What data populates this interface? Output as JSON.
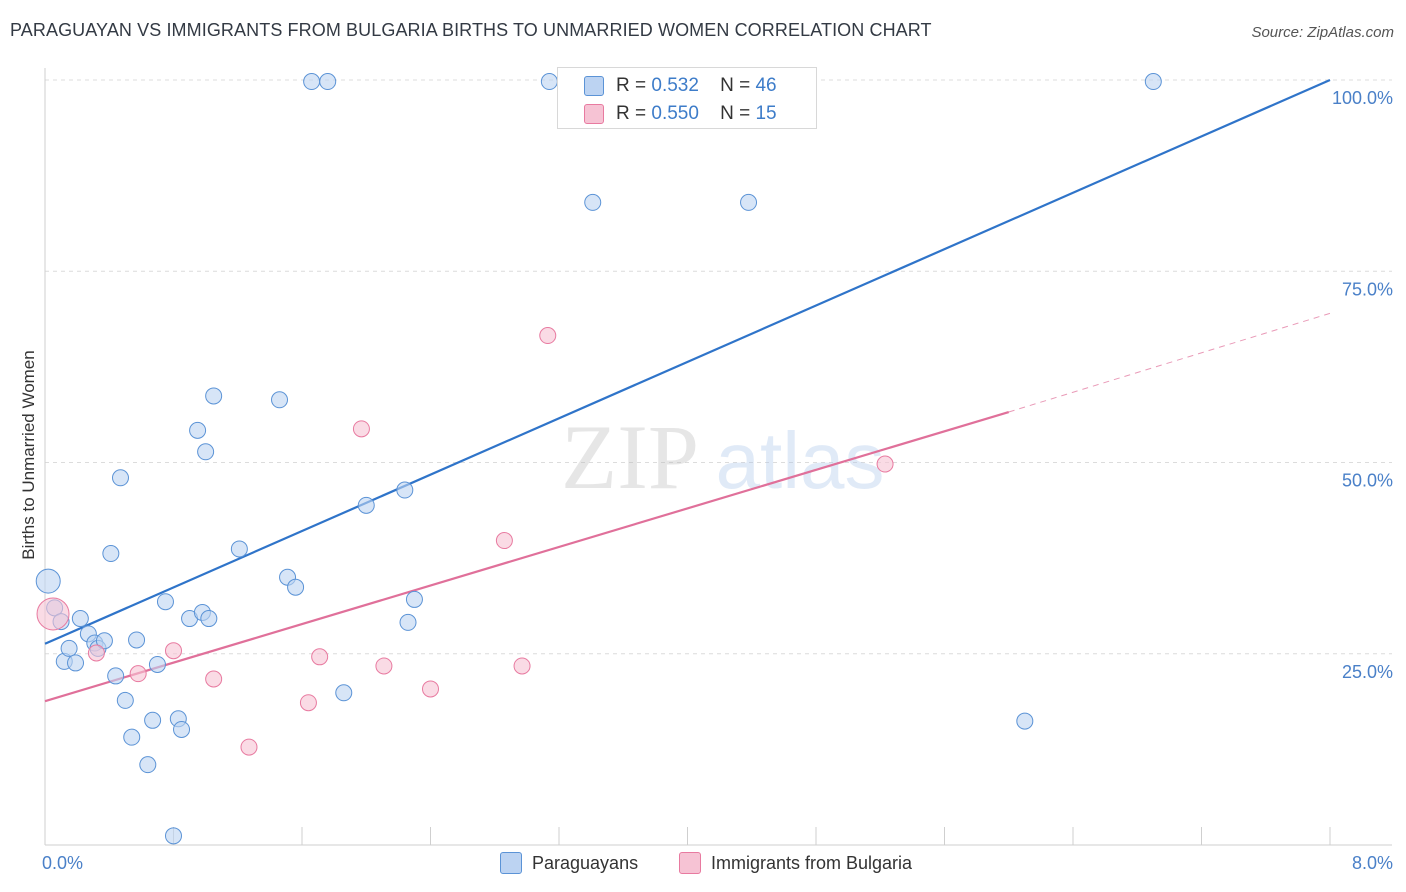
{
  "title": "PARAGUAYAN VS IMMIGRANTS FROM BULGARIA BIRTHS TO UNMARRIED WOMEN CORRELATION CHART",
  "source": "Source: ZipAtlas.com",
  "watermark": {
    "zip": "ZIP",
    "atlas": "atlas"
  },
  "colors": {
    "blue": "#5b93d6",
    "blue_fill": "#bcd3f2",
    "pink": "#e87aa0",
    "pink_fill": "#f6c3d4",
    "blue_line": "#2f74c9",
    "pink_line": "#e0709a",
    "axis_text": "#4a80c8"
  },
  "legend_corr": [
    {
      "series": "Paraguayans",
      "r_label": "R =",
      "r": "0.532",
      "n_label": "N =",
      "n": "46"
    },
    {
      "series": "Immigrants from Bulgaria",
      "r_label": "R =",
      "r": "0.550",
      "n_label": "N =",
      "n": "15"
    }
  ],
  "legend_bottom": [
    "Paraguayans",
    "Immigrants from Bulgaria"
  ],
  "chart_data": {
    "type": "scatter",
    "title": "PARAGUAYAN VS IMMIGRANTS FROM BULGARIA BIRTHS TO UNMARRIED WOMEN CORRELATION CHART",
    "xlabel": "",
    "ylabel": "Births to Unmarried Women",
    "xlim": [
      0,
      8
    ],
    "ylim": [
      0,
      100
    ],
    "x_tick_labels": [
      "0.0%",
      "8.0%"
    ],
    "y_tick_labels": [
      "25.0%",
      "50.0%",
      "75.0%",
      "100.0%"
    ],
    "y_ticks": [
      25,
      50,
      75,
      100
    ],
    "series": [
      {
        "name": "Paraguayans",
        "points": [
          [
            0.02,
            34.5
          ],
          [
            0.06,
            31.0
          ],
          [
            0.1,
            29.2
          ],
          [
            0.12,
            24.0
          ],
          [
            0.15,
            25.7
          ],
          [
            0.19,
            23.8
          ],
          [
            0.22,
            29.6
          ],
          [
            0.27,
            27.6
          ],
          [
            0.31,
            26.4
          ],
          [
            0.33,
            25.7
          ],
          [
            0.37,
            26.7
          ],
          [
            0.41,
            38.1
          ],
          [
            0.44,
            22.1
          ],
          [
            0.47,
            48.0
          ],
          [
            0.5,
            18.9
          ],
          [
            0.54,
            14.1
          ],
          [
            0.57,
            26.8
          ],
          [
            0.64,
            10.5
          ],
          [
            0.67,
            16.3
          ],
          [
            0.7,
            23.6
          ],
          [
            0.75,
            31.8
          ],
          [
            0.8,
            1.2
          ],
          [
            0.83,
            16.5
          ],
          [
            0.85,
            15.1
          ],
          [
            0.9,
            29.6
          ],
          [
            0.95,
            54.2
          ],
          [
            0.98,
            30.4
          ],
          [
            1.0,
            51.4
          ],
          [
            1.02,
            29.6
          ],
          [
            1.05,
            58.7
          ],
          [
            1.21,
            38.7
          ],
          [
            1.46,
            58.2
          ],
          [
            1.51,
            35.0
          ],
          [
            1.56,
            33.7
          ],
          [
            1.66,
            99.8
          ],
          [
            1.76,
            99.8
          ],
          [
            1.86,
            19.9
          ],
          [
            2.0,
            44.4
          ],
          [
            2.24,
            46.4
          ],
          [
            2.26,
            29.1
          ],
          [
            2.3,
            32.1
          ],
          [
            3.14,
            99.8
          ],
          [
            3.41,
            84.0
          ],
          [
            4.38,
            84.0
          ],
          [
            6.1,
            16.2
          ],
          [
            6.9,
            99.8
          ]
        ]
      },
      {
        "name": "Immigrants from Bulgaria",
        "points": [
          [
            0.05,
            30.2
          ],
          [
            0.32,
            25.1
          ],
          [
            0.58,
            22.4
          ],
          [
            0.8,
            25.4
          ],
          [
            1.05,
            21.7
          ],
          [
            1.27,
            12.8
          ],
          [
            1.64,
            18.6
          ],
          [
            1.71,
            24.6
          ],
          [
            1.97,
            54.4
          ],
          [
            2.11,
            23.4
          ],
          [
            2.4,
            20.4
          ],
          [
            2.86,
            39.8
          ],
          [
            2.97,
            23.4
          ],
          [
            3.13,
            66.6
          ],
          [
            5.23,
            49.8
          ]
        ]
      }
    ],
    "trend_lines": [
      {
        "series": "Paraguayans",
        "x": [
          0,
          8
        ],
        "y": [
          26.3,
          100.0
        ],
        "dashed_extension": false
      },
      {
        "series": "Immigrants from Bulgaria",
        "x": [
          0,
          6.0
        ],
        "y": [
          18.8,
          56.6
        ],
        "dashed_extension_to": [
          8,
          69.5
        ]
      }
    ]
  }
}
